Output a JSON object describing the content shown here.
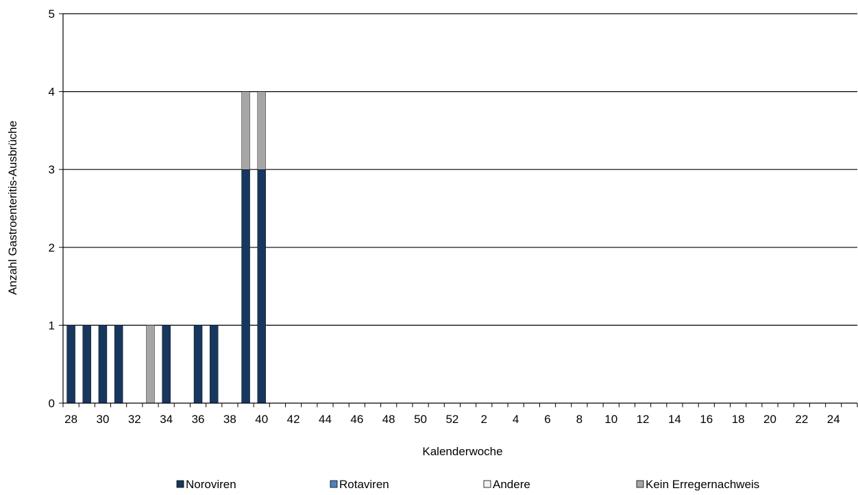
{
  "chart_data": {
    "type": "bar",
    "stacked": true,
    "title": "",
    "xlabel": "Kalenderwoche",
    "ylabel": "Anzahl Gastroenteritis-Ausbrüche",
    "ylim": [
      0,
      5
    ],
    "yticks": [
      0,
      1,
      2,
      3,
      4,
      5
    ],
    "grid": true,
    "legend_position": "bottom",
    "categories": [
      28,
      29,
      30,
      31,
      32,
      33,
      34,
      35,
      36,
      37,
      38,
      39,
      40,
      41,
      42,
      43,
      44,
      45,
      46,
      47,
      48,
      49,
      50,
      51,
      52,
      1,
      2,
      3,
      4,
      5,
      6,
      7,
      8,
      9,
      10,
      11,
      12,
      13,
      14,
      15,
      16,
      17,
      18,
      19,
      20,
      21,
      22,
      23,
      24,
      25
    ],
    "xtick_labels": [
      "28",
      "30",
      "32",
      "34",
      "36",
      "38",
      "40",
      "42",
      "44",
      "46",
      "48",
      "50",
      "52",
      "2",
      "4",
      "6",
      "8",
      "10",
      "12",
      "14",
      "16",
      "18",
      "20",
      "22",
      "24"
    ],
    "series": [
      {
        "name": "Noroviren",
        "color": "#17375e",
        "values": [
          1,
          1,
          1,
          1,
          0,
          0,
          1,
          0,
          1,
          1,
          0,
          3,
          3,
          0,
          0,
          0,
          0,
          0,
          0,
          0,
          0,
          0,
          0,
          0,
          0,
          0,
          0,
          0,
          0,
          0,
          0,
          0,
          0,
          0,
          0,
          0,
          0,
          0,
          0,
          0,
          0,
          0,
          0,
          0,
          0,
          0,
          0,
          0,
          0,
          0
        ]
      },
      {
        "name": "Rotaviren",
        "color": "#4f81bd",
        "values": [
          0,
          0,
          0,
          0,
          0,
          0,
          0,
          0,
          0,
          0,
          0,
          0,
          0,
          0,
          0,
          0,
          0,
          0,
          0,
          0,
          0,
          0,
          0,
          0,
          0,
          0,
          0,
          0,
          0,
          0,
          0,
          0,
          0,
          0,
          0,
          0,
          0,
          0,
          0,
          0,
          0,
          0,
          0,
          0,
          0,
          0,
          0,
          0,
          0,
          0
        ]
      },
      {
        "name": "Andere",
        "color": "#f2f2f2",
        "values": [
          0,
          0,
          0,
          0,
          0,
          0,
          0,
          0,
          0,
          0,
          0,
          0,
          0,
          0,
          0,
          0,
          0,
          0,
          0,
          0,
          0,
          0,
          0,
          0,
          0,
          0,
          0,
          0,
          0,
          0,
          0,
          0,
          0,
          0,
          0,
          0,
          0,
          0,
          0,
          0,
          0,
          0,
          0,
          0,
          0,
          0,
          0,
          0,
          0,
          0
        ]
      },
      {
        "name": "Kein Erregernachweis",
        "color": "#a6a6a6",
        "values": [
          0,
          0,
          0,
          0,
          0,
          1,
          0,
          0,
          0,
          0,
          0,
          1,
          1,
          0,
          0,
          0,
          0,
          0,
          0,
          0,
          0,
          0,
          0,
          0,
          0,
          0,
          0,
          0,
          0,
          0,
          0,
          0,
          0,
          0,
          0,
          0,
          0,
          0,
          0,
          0,
          0,
          0,
          0,
          0,
          0,
          0,
          0,
          0,
          0,
          0
        ]
      }
    ]
  }
}
